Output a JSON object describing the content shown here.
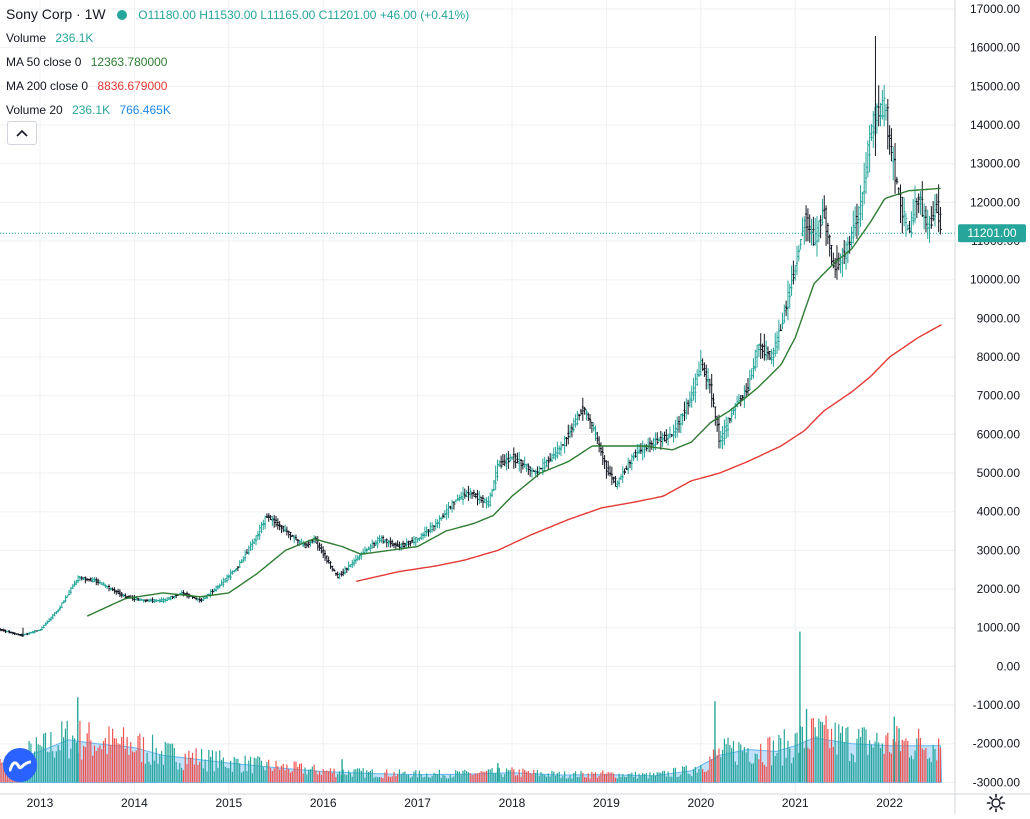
{
  "legend": {
    "symbol": "Sony Corp · 1W",
    "ohlc": "O11180.00 H11530.00 L11165.00 C11201.00 +46.00 (+0.41%)",
    "volume_label": "Volume",
    "volume_value": "236.1K",
    "ma50_label": "MA 50 close 0",
    "ma50_value": "12363.780000",
    "ma200_label": "MA 200 close 0",
    "ma200_value": "8836.679000",
    "vol20_label": "Volume 20",
    "vol20_value1": "236.1K",
    "vol20_value2": "766.465K"
  },
  "last_price_label": "11201.00",
  "icons": {
    "collapse": "chevron-up-icon",
    "logo": "tradingview-logo-icon",
    "settings": "gear-icon"
  },
  "colors": {
    "up": "#26a69a",
    "down": "#ef5350",
    "ma50": "#2e7d32",
    "ma200": "#e53935",
    "vol20_area": "#90caf9",
    "last_price_bg": "#26a69a"
  },
  "chart_data": {
    "type": "candlestick",
    "interval": "1W",
    "x_ticks": [
      "2013",
      "2014",
      "2015",
      "2016",
      "2017",
      "2018",
      "2019",
      "2020",
      "2021",
      "2022"
    ],
    "y_ticks": [
      "17000.00",
      "16000.00",
      "15000.00",
      "14000.00",
      "13000.00",
      "12000.00",
      "11000.00",
      "10000.00",
      "9000.00",
      "8000.00",
      "7000.00",
      "6000.00",
      "5000.00",
      "4000.00",
      "3000.00",
      "2000.00",
      "1000.00",
      "0.00",
      "-1000.00",
      "-2000.00",
      "-3000.00"
    ],
    "ylim": [
      -3300,
      17000
    ],
    "grid": true,
    "price_path": [
      [
        2012.5,
        1000
      ],
      [
        2012.8,
        800
      ],
      [
        2013.0,
        950
      ],
      [
        2013.2,
        1500
      ],
      [
        2013.4,
        2300
      ],
      [
        2013.6,
        2200
      ],
      [
        2013.9,
        1800
      ],
      [
        2014.1,
        1700
      ],
      [
        2014.3,
        1700
      ],
      [
        2014.5,
        1900
      ],
      [
        2014.7,
        1700
      ],
      [
        2014.9,
        2100
      ],
      [
        2015.1,
        2600
      ],
      [
        2015.3,
        3400
      ],
      [
        2015.4,
        3900
      ],
      [
        2015.6,
        3500
      ],
      [
        2015.8,
        3100
      ],
      [
        2015.9,
        3300
      ],
      [
        2016.05,
        2700
      ],
      [
        2016.15,
        2300
      ],
      [
        2016.4,
        2900
      ],
      [
        2016.6,
        3300
      ],
      [
        2016.8,
        3100
      ],
      [
        2017.0,
        3300
      ],
      [
        2017.2,
        3700
      ],
      [
        2017.4,
        4300
      ],
      [
        2017.55,
        4500
      ],
      [
        2017.75,
        4200
      ],
      [
        2017.85,
        5200
      ],
      [
        2018.0,
        5400
      ],
      [
        2018.25,
        5000
      ],
      [
        2018.5,
        5600
      ],
      [
        2018.75,
        6700
      ],
      [
        2018.85,
        6200
      ],
      [
        2019.0,
        5100
      ],
      [
        2019.1,
        4700
      ],
      [
        2019.3,
        5500
      ],
      [
        2019.5,
        5800
      ],
      [
        2019.7,
        6000
      ],
      [
        2019.9,
        7000
      ],
      [
        2020.0,
        7800
      ],
      [
        2020.1,
        7200
      ],
      [
        2020.2,
        5800
      ],
      [
        2020.35,
        6700
      ],
      [
        2020.5,
        7200
      ],
      [
        2020.6,
        8300
      ],
      [
        2020.75,
        8000
      ],
      [
        2020.85,
        8800
      ],
      [
        2021.0,
        10400
      ],
      [
        2021.1,
        11600
      ],
      [
        2021.2,
        11000
      ],
      [
        2021.3,
        11800
      ],
      [
        2021.4,
        10300
      ],
      [
        2021.55,
        10800
      ],
      [
        2021.7,
        12000
      ],
      [
        2021.8,
        13900
      ],
      [
        2021.85,
        14300
      ],
      [
        2021.95,
        14500
      ],
      [
        2022.0,
        13500
      ],
      [
        2022.1,
        12100
      ],
      [
        2022.2,
        11200
      ],
      [
        2022.3,
        12200
      ],
      [
        2022.4,
        11300
      ],
      [
        2022.5,
        11900
      ],
      [
        2022.55,
        11201
      ]
    ],
    "high": 16300,
    "low": 760,
    "ma50_path": [
      [
        2013.5,
        1300
      ],
      [
        2013.9,
        1750
      ],
      [
        2014.3,
        1900
      ],
      [
        2014.7,
        1800
      ],
      [
        2015.0,
        1900
      ],
      [
        2015.3,
        2400
      ],
      [
        2015.6,
        3000
      ],
      [
        2015.9,
        3300
      ],
      [
        2016.2,
        3100
      ],
      [
        2016.4,
        2900
      ],
      [
        2016.7,
        3000
      ],
      [
        2017.0,
        3100
      ],
      [
        2017.3,
        3500
      ],
      [
        2017.6,
        3700
      ],
      [
        2017.8,
        3900
      ],
      [
        2018.0,
        4400
      ],
      [
        2018.3,
        5000
      ],
      [
        2018.6,
        5300
      ],
      [
        2018.85,
        5700
      ],
      [
        2019.1,
        5700
      ],
      [
        2019.4,
        5700
      ],
      [
        2019.7,
        5600
      ],
      [
        2019.9,
        5800
      ],
      [
        2020.1,
        6300
      ],
      [
        2020.3,
        6600
      ],
      [
        2020.6,
        7200
      ],
      [
        2020.85,
        7800
      ],
      [
        2021.0,
        8500
      ],
      [
        2021.2,
        9900
      ],
      [
        2021.4,
        10400
      ],
      [
        2021.6,
        10800
      ],
      [
        2021.8,
        11500
      ],
      [
        2021.95,
        12100
      ],
      [
        2022.2,
        12300
      ],
      [
        2022.55,
        12364
      ]
    ],
    "ma200_path": [
      [
        2016.35,
        2200
      ],
      [
        2016.8,
        2450
      ],
      [
        2017.2,
        2600
      ],
      [
        2017.5,
        2750
      ],
      [
        2017.85,
        3000
      ],
      [
        2018.2,
        3400
      ],
      [
        2018.6,
        3800
      ],
      [
        2018.95,
        4100
      ],
      [
        2019.3,
        4250
      ],
      [
        2019.6,
        4400
      ],
      [
        2019.9,
        4800
      ],
      [
        2020.2,
        5000
      ],
      [
        2020.5,
        5300
      ],
      [
        2020.85,
        5700
      ],
      [
        2021.1,
        6100
      ],
      [
        2021.3,
        6600
      ],
      [
        2021.6,
        7100
      ],
      [
        2021.8,
        7500
      ],
      [
        2022.0,
        8000
      ],
      [
        2022.3,
        8500
      ],
      [
        2022.55,
        8837
      ]
    ],
    "volume_path": [
      [
        2012.5,
        400
      ],
      [
        2013.0,
        800
      ],
      [
        2013.3,
        1100
      ],
      [
        2013.6,
        1000
      ],
      [
        2014.0,
        900
      ],
      [
        2014.3,
        700
      ],
      [
        2015.0,
        500
      ],
      [
        2015.5,
        380
      ],
      [
        2016.0,
        280
      ],
      [
        2016.5,
        230
      ],
      [
        2017.0,
        200
      ],
      [
        2017.5,
        210
      ],
      [
        2018.0,
        250
      ],
      [
        2018.5,
        190
      ],
      [
        2019.0,
        200
      ],
      [
        2019.5,
        170
      ],
      [
        2019.9,
        300
      ],
      [
        2020.2,
        700
      ],
      [
        2020.5,
        850
      ],
      [
        2020.8,
        800
      ],
      [
        2021.0,
        950
      ],
      [
        2021.2,
        1150
      ],
      [
        2021.6,
        1000
      ],
      [
        2022.0,
        950
      ],
      [
        2022.55,
        950
      ]
    ],
    "volume_spikes": [
      [
        2013.4,
        2200
      ],
      [
        2016.2,
        600
      ],
      [
        2017.85,
        500
      ],
      [
        2020.15,
        2100
      ],
      [
        2021.05,
        3900
      ],
      [
        2021.12,
        1900
      ],
      [
        2022.05,
        1700
      ],
      [
        2022.1,
        1400
      ]
    ]
  }
}
